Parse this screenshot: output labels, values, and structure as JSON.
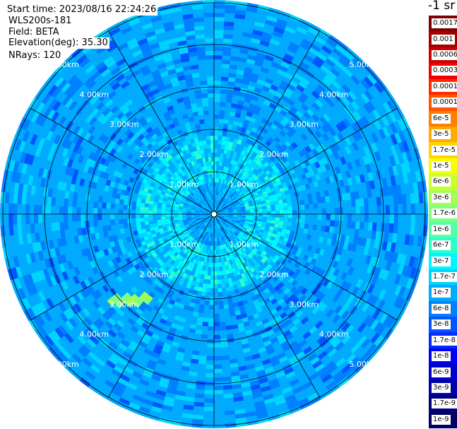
{
  "info": {
    "start_time": "Start time: 2023/08/16 22:24:26",
    "instrument": "WLS200s-181",
    "field": "Field: BETA",
    "elevation": "Elevation(deg): 35.30",
    "nrays": "NRays: 120"
  },
  "colorbar": {
    "unit": "-1 sr",
    "labels": [
      "0.0017",
      "0.001",
      "0.0006",
      "0.0003",
      "0.00017",
      "0.0001",
      "6e-5",
      "3e-5",
      "1.7e-5",
      "1e-5",
      "6e-6",
      "3e-6",
      "1.7e-6",
      "1e-6",
      "6e-7",
      "3e-7",
      "1.7e-7",
      "1e-7",
      "6e-8",
      "3e-8",
      "1.7e-8",
      "1e-8",
      "6e-9",
      "3e-9",
      "1.7e-9",
      "1e-9"
    ],
    "colors": [
      "#7f0000",
      "#a40000",
      "#cc0000",
      "#f50000",
      "#ff2a00",
      "#ff5500",
      "#ff7f00",
      "#ffaa00",
      "#ffd400",
      "#f7ff00",
      "#ccff2a",
      "#a4ff55",
      "#7fff7f",
      "#55ffa4",
      "#2affcc",
      "#00f7ff",
      "#00d4ff",
      "#00aaff",
      "#0080ff",
      "#0055ff",
      "#002aff",
      "#0000f5",
      "#0000cc",
      "#0000a4",
      "#00007f",
      "#000066"
    ]
  },
  "chart_data": {
    "type": "heatmap",
    "projection": "polar (PPI scan)",
    "field": "BETA",
    "elevation_deg": 35.3,
    "nrays": 120,
    "radial_unit": "km",
    "range_max_km": 5.0,
    "range_rings_km": [
      1,
      2,
      3,
      4,
      5
    ],
    "ring_labels": [
      "1.00km",
      "2.00km",
      "3.00km",
      "4.00km",
      "5.00km"
    ],
    "spoke_interval_deg": 30,
    "color_scale": "log",
    "value_range": [
      1e-09,
      0.0017
    ],
    "background_value_typical": 1e-07,
    "near_range_value_typical": 3e-07,
    "feature": {
      "description_value": 1.7e-06,
      "azimuth_deg_range": [
        217,
        232
      ],
      "range_km_range": [
        2.4,
        3.2
      ]
    }
  }
}
